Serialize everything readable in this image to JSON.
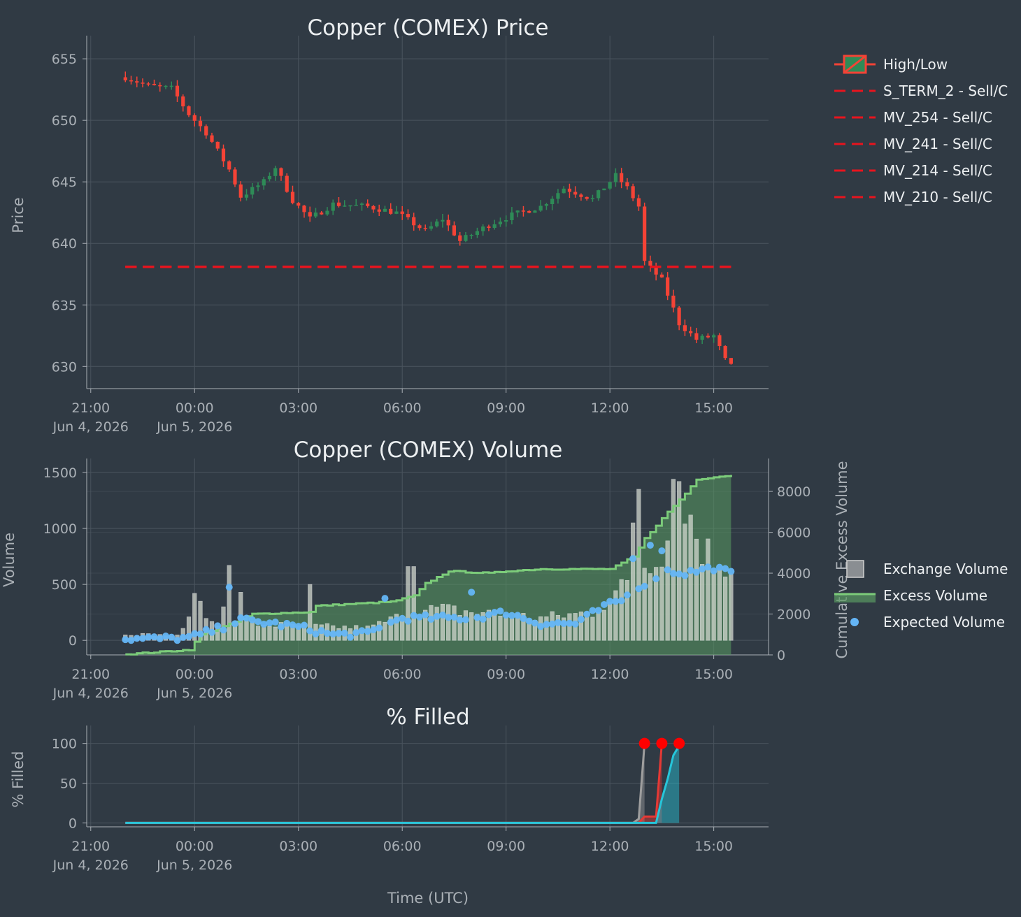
{
  "theme": {
    "background": "#303a44",
    "grid": "#4a545e",
    "up": "#2e8b57",
    "down": "#f44336",
    "signal": "#e8141e",
    "exchange_volume": "#9e9e9e",
    "excess_volume": "#7ccc7a",
    "expected_volume": "#64b5f6",
    "fill_grey": "#9e9e9e",
    "fill_red": "#e53935",
    "fill_cyan": "#26c6da",
    "fill_marker": "#ff0000"
  },
  "x_axis": {
    "title": "Time (UTC)",
    "ticks": [
      {
        "time": "2026-06-04 21:00",
        "line1": "21:00",
        "line2": "Jun 4, 2026"
      },
      {
        "time": "2026-06-05 00:00",
        "line1": "00:00",
        "line2": "Jun 5, 2026"
      },
      {
        "time": "2026-06-05 03:00",
        "line1": "03:00",
        "line2": ""
      },
      {
        "time": "2026-06-05 06:00",
        "line1": "06:00",
        "line2": ""
      },
      {
        "time": "2026-06-05 09:00",
        "line1": "09:00",
        "line2": ""
      },
      {
        "time": "2026-06-05 12:00",
        "line1": "12:00",
        "line2": ""
      },
      {
        "time": "2026-06-05 15:00",
        "line1": "15:00",
        "line2": ""
      }
    ],
    "range": [
      "2026-06-04 20:53",
      "2026-06-05 16:35"
    ]
  },
  "legend_price": [
    {
      "label": "High/Low",
      "kind": "candle"
    },
    {
      "label": "S_TERM_2 - Sell/C",
      "kind": "dash"
    },
    {
      "label": "MV_254 - Sell/C",
      "kind": "dash"
    },
    {
      "label": "MV_241 - Sell/C",
      "kind": "dash"
    },
    {
      "label": "MV_214 - Sell/C",
      "kind": "dash"
    },
    {
      "label": "MV_210 - Sell/C",
      "kind": "dash"
    }
  ],
  "legend_volume": [
    {
      "label": "Exchange Volume",
      "kind": "bar"
    },
    {
      "label": "Excess Volume",
      "kind": "line"
    },
    {
      "label": "Expected Volume",
      "kind": "dot"
    }
  ],
  "chart_data": [
    {
      "type": "candlestick",
      "title": "Copper (COMEX) Price",
      "ylabel": "Price",
      "xlabel": "",
      "ylim": [
        628.2,
        656.2
      ],
      "yticks": [
        630,
        635,
        640,
        645,
        650,
        655
      ],
      "close_anchors": [
        [
          "2026-06-04 22:00",
          653.5
        ],
        [
          "2026-06-04 22:40",
          652.8
        ],
        [
          "2026-06-04 23:20",
          652.6
        ],
        [
          "2026-06-04 23:50",
          650.5
        ],
        [
          "2026-06-05 00:20",
          649.0
        ],
        [
          "2026-06-05 01:00",
          646.0
        ],
        [
          "2026-06-05 01:20",
          643.8
        ],
        [
          "2026-06-05 02:00",
          645.0
        ],
        [
          "2026-06-05 02:20",
          646.2
        ],
        [
          "2026-06-05 02:50",
          643.5
        ],
        [
          "2026-06-05 03:20",
          642.0
        ],
        [
          "2026-06-05 04:00",
          643.2
        ],
        [
          "2026-06-05 05:00",
          643.0
        ],
        [
          "2026-06-05 05:50",
          642.5
        ],
        [
          "2026-06-05 06:40",
          641.0
        ],
        [
          "2026-06-05 07:10",
          642.0
        ],
        [
          "2026-06-05 07:40",
          640.2
        ],
        [
          "2026-06-05 08:30",
          641.5
        ],
        [
          "2026-06-05 09:10",
          642.3
        ],
        [
          "2026-06-05 10:00",
          643.0
        ],
        [
          "2026-06-05 10:40",
          644.5
        ],
        [
          "2026-06-05 11:30",
          643.6
        ],
        [
          "2026-06-05 12:10",
          645.5
        ],
        [
          "2026-06-05 12:30",
          644.5
        ],
        [
          "2026-06-05 12:50",
          643.0
        ],
        [
          "2026-06-05 13:00",
          638.5
        ],
        [
          "2026-06-05 13:30",
          637.0
        ],
        [
          "2026-06-05 14:00",
          633.5
        ],
        [
          "2026-06-05 14:30",
          632.2
        ],
        [
          "2026-06-05 15:00",
          632.5
        ],
        [
          "2026-06-05 15:20",
          630.5
        ],
        [
          "2026-06-05 15:30",
          630.0
        ]
      ],
      "signals": [
        {
          "name": "S_TERM_2 - Sell/C",
          "price": 638.1,
          "start": "2026-06-04 22:00",
          "end": "2026-06-05 15:30"
        },
        {
          "name": "MV_254 - Sell/C",
          "price": 638.1,
          "start": "2026-06-04 22:00",
          "end": "2026-06-05 15:30"
        },
        {
          "name": "MV_241 - Sell/C",
          "price": 638.1,
          "start": "2026-06-04 22:00",
          "end": "2026-06-05 15:30"
        },
        {
          "name": "MV_214 - Sell/C",
          "price": 638.1,
          "start": "2026-06-04 22:00",
          "end": "2026-06-05 15:30"
        },
        {
          "name": "MV_210 - Sell/C",
          "price": 638.1,
          "start": "2026-06-04 22:00",
          "end": "2026-06-05 15:30"
        }
      ]
    },
    {
      "type": "bar",
      "title": "Copper (COMEX) Volume",
      "ylabel": "Volume",
      "y2label": "Cumulative Excess Volume",
      "ylim": [
        -130,
        1550
      ],
      "yticks": [
        0,
        500,
        1000,
        1500
      ],
      "y2lim": [
        0,
        9200
      ],
      "y2ticks": [
        0,
        2000,
        4000,
        6000,
        8000
      ],
      "exchange_volume_anchors": [
        [
          "2026-06-04 22:00",
          60
        ],
        [
          "2026-06-04 23:30",
          40
        ],
        [
          "2026-06-05 00:00",
          200
        ],
        [
          "2026-06-05 01:00",
          150
        ],
        [
          "2026-06-05 03:00",
          130
        ],
        [
          "2026-06-05 05:00",
          110
        ],
        [
          "2026-06-05 06:00",
          220
        ],
        [
          "2026-06-05 07:00",
          280
        ],
        [
          "2026-06-05 08:30",
          240
        ],
        [
          "2026-06-05 10:00",
          200
        ],
        [
          "2026-06-05 11:30",
          250
        ],
        [
          "2026-06-05 12:30",
          500
        ],
        [
          "2026-06-05 13:00",
          680
        ],
        [
          "2026-06-05 13:40",
          900
        ],
        [
          "2026-06-05 14:20",
          1000
        ],
        [
          "2026-06-05 15:00",
          700
        ],
        [
          "2026-06-05 15:30",
          700
        ]
      ],
      "exchange_volume_spikes": [
        [
          "2026-06-04 23:50",
          210
        ],
        [
          "2026-06-05 00:00",
          420
        ],
        [
          "2026-06-05 00:10",
          350
        ],
        [
          "2026-06-05 00:50",
          300
        ],
        [
          "2026-06-05 01:00",
          670
        ],
        [
          "2026-06-05 01:20",
          430
        ],
        [
          "2026-06-05 03:20",
          500
        ],
        [
          "2026-06-05 06:10",
          660
        ],
        [
          "2026-06-05 06:20",
          660
        ],
        [
          "2026-06-05 12:40",
          1050
        ],
        [
          "2026-06-05 12:50",
          1350
        ],
        [
          "2026-06-05 13:50",
          1440
        ],
        [
          "2026-06-05 14:00",
          1420
        ],
        [
          "2026-06-05 14:20",
          1120
        ]
      ],
      "expected_volume_anchors": [
        [
          "2026-06-04 22:00",
          10
        ],
        [
          "2026-06-04 23:50",
          20
        ],
        [
          "2026-06-05 00:40",
          100
        ],
        [
          "2026-06-05 01:20",
          180
        ],
        [
          "2026-06-05 02:00",
          160
        ],
        [
          "2026-06-05 03:00",
          120
        ],
        [
          "2026-06-05 04:00",
          50
        ],
        [
          "2026-06-05 05:00",
          60
        ],
        [
          "2026-06-05 06:00",
          200
        ],
        [
          "2026-06-05 07:00",
          200
        ],
        [
          "2026-06-05 08:00",
          200
        ],
        [
          "2026-06-05 09:00",
          250
        ],
        [
          "2026-06-05 10:00",
          150
        ],
        [
          "2026-06-05 11:00",
          150
        ],
        [
          "2026-06-05 11:50",
          300
        ],
        [
          "2026-06-05 12:20",
          360
        ],
        [
          "2026-06-05 13:10",
          550
        ],
        [
          "2026-06-05 13:40",
          620
        ],
        [
          "2026-06-05 14:10",
          600
        ],
        [
          "2026-06-05 15:00",
          650
        ],
        [
          "2026-06-05 15:30",
          600
        ]
      ],
      "expected_volume_spikes": [
        [
          "2026-06-05 01:00",
          475
        ],
        [
          "2026-06-05 05:30",
          375
        ],
        [
          "2026-06-05 08:00",
          430
        ],
        [
          "2026-06-05 12:40",
          730
        ],
        [
          "2026-06-05 13:10",
          850
        ],
        [
          "2026-06-05 13:30",
          800
        ]
      ],
      "cumulative_excess_anchors": [
        [
          "2026-06-04 22:00",
          30
        ],
        [
          "2026-06-04 23:50",
          250
        ],
        [
          "2026-06-05 00:10",
          1000
        ],
        [
          "2026-06-05 01:00",
          1500
        ],
        [
          "2026-06-05 01:40",
          2000
        ],
        [
          "2026-06-05 03:20",
          2100
        ],
        [
          "2026-06-05 03:30",
          2400
        ],
        [
          "2026-06-05 05:40",
          2600
        ],
        [
          "2026-06-05 06:20",
          2900
        ],
        [
          "2026-06-05 06:40",
          3500
        ],
        [
          "2026-06-05 07:20",
          4100
        ],
        [
          "2026-06-05 08:30",
          4000
        ],
        [
          "2026-06-05 09:00",
          4100
        ],
        [
          "2026-06-05 10:00",
          4200
        ],
        [
          "2026-06-05 12:00",
          4200
        ],
        [
          "2026-06-05 12:40",
          4800
        ],
        [
          "2026-06-05 13:00",
          5700
        ],
        [
          "2026-06-05 13:40",
          7000
        ],
        [
          "2026-06-05 14:10",
          7900
        ],
        [
          "2026-06-05 14:30",
          8600
        ],
        [
          "2026-06-05 15:30",
          8800
        ]
      ]
    },
    {
      "type": "area",
      "title": "% Filled",
      "ylabel": "% Filled",
      "ylim": [
        -5,
        112
      ],
      "yticks": [
        0,
        50,
        100
      ],
      "series": [
        {
          "color_key": "fill_grey",
          "points": [
            [
              "2026-06-04 22:00",
              0
            ],
            [
              "2026-06-05 12:40",
              0
            ],
            [
              "2026-06-05 12:50",
              5
            ],
            [
              "2026-06-05 13:00",
              100
            ]
          ],
          "completed_at": "2026-06-05 13:00"
        },
        {
          "color_key": "fill_red",
          "points": [
            [
              "2026-06-04 22:00",
              0
            ],
            [
              "2026-06-05 12:50",
              0
            ],
            [
              "2026-06-05 13:00",
              8
            ],
            [
              "2026-06-05 13:20",
              8
            ],
            [
              "2026-06-05 13:30",
              100
            ]
          ],
          "completed_at": "2026-06-05 13:30"
        },
        {
          "color_key": "fill_cyan",
          "points": [
            [
              "2026-06-04 22:00",
              0
            ],
            [
              "2026-06-05 13:20",
              0
            ],
            [
              "2026-06-05 13:30",
              30
            ],
            [
              "2026-06-05 13:40",
              55
            ],
            [
              "2026-06-05 13:50",
              85
            ],
            [
              "2026-06-05 14:00",
              97
            ]
          ],
          "completed_at": "2026-06-05 14:00"
        }
      ]
    }
  ]
}
